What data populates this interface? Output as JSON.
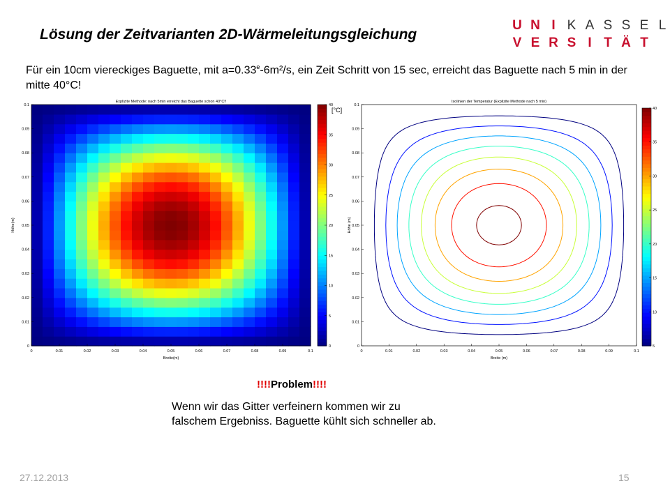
{
  "slide": {
    "title": "Lösung der Zeitvarianten 2D-Wärmeleitungsgleichung",
    "intro_part1": "Für ein 10cm viereckiges Baguette, mit a=0.33",
    "intro_sup": "e",
    "intro_part2": "-6m²/s, ein Zeit Schritt von 15 sec, erreicht das Baguette nach 5 min in der mitte 40°C!",
    "problem_left": "!!!!",
    "problem_word": "Problem",
    "problem_right": "!!!!",
    "description": "Wenn wir das Gitter verfeinern kommen wir zu falschem Ergebniss. Baguette kühlt sich schneller ab.",
    "date": "27.12.2013",
    "page": "15"
  },
  "logo": {
    "row1": [
      "U",
      "N",
      "I",
      "K",
      "A",
      "S",
      "S",
      "E",
      "L"
    ],
    "row2": [
      "V",
      "E",
      "R",
      "S",
      "I",
      "T",
      "Ä",
      "T"
    ]
  },
  "chart_data": [
    {
      "type": "heatmap",
      "title": "Explizite Methode: nach 5min erreicht das Baguette schon 40°C!!",
      "xlabel": "Breite(m)",
      "ylabel": "Höhe(m)",
      "xlim": [
        0,
        0.1
      ],
      "ylim": [
        0,
        0.1
      ],
      "x_ticks": [
        "0",
        "0.01",
        "0.02",
        "0.03",
        "0.04",
        "0.05",
        "0.06",
        "0.07",
        "0.08",
        "0.09",
        "0.1"
      ],
      "y_ticks": [
        "0",
        "0.01",
        "0.02",
        "0.03",
        "0.04",
        "0.05",
        "0.06",
        "0.07",
        "0.08",
        "0.09",
        "0.1"
      ],
      "grid_cells": 25,
      "center_value": 40,
      "boundary_value": 0,
      "colorbar": {
        "label": "[°C]",
        "min": 0,
        "max": 40,
        "ticks": [
          "0",
          "5",
          "10",
          "15",
          "20",
          "25",
          "30",
          "35",
          "40"
        ]
      }
    },
    {
      "type": "contour",
      "title": "Isolinien der Temperatur (Explizite Methode nach 5 min)",
      "xlabel": "Breite (m)",
      "ylabel": "Höhe (m)",
      "xlim": [
        0,
        0.1
      ],
      "ylim": [
        0,
        0.1
      ],
      "x_ticks": [
        "0",
        "0.01",
        "0.02",
        "0.03",
        "0.04",
        "0.05",
        "0.06",
        "0.07",
        "0.08",
        "0.09",
        "0.1"
      ],
      "y_ticks": [
        "0",
        "0.01",
        "0.02",
        "0.03",
        "0.04",
        "0.05",
        "0.06",
        "0.07",
        "0.08",
        "0.09",
        "0.1"
      ],
      "levels": [
        5,
        10,
        15,
        20,
        25,
        30,
        35,
        40
      ],
      "colorbar": {
        "min": 5,
        "max": 40,
        "ticks": [
          "5",
          "10",
          "15",
          "20",
          "25",
          "30",
          "35",
          "40"
        ]
      }
    }
  ]
}
